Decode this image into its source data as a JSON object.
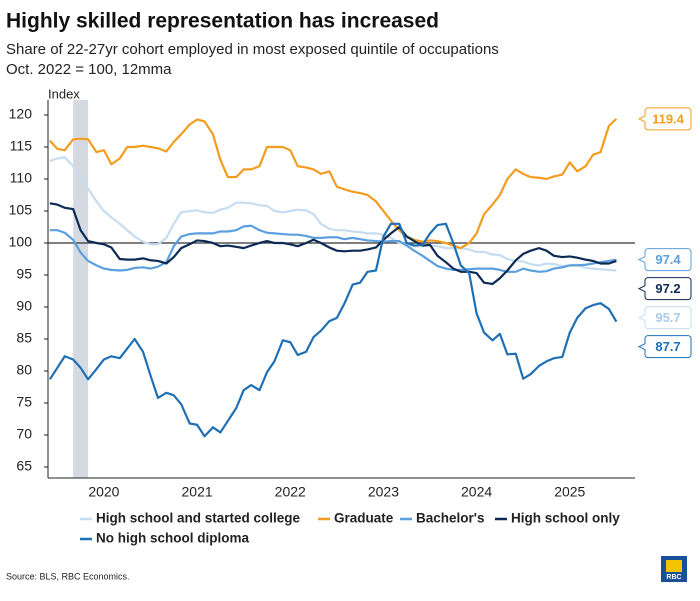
{
  "chart_data": {
    "type": "line",
    "title": "Highly skilled representation has increased",
    "subtitle": "Share of 22-27yr cohort employed in most exposed quintile of occupations",
    "subtitle2": "Oct. 2022 = 100, 12mma",
    "ylabel": "Index",
    "source": "Source: BLS, RBC Economics.",
    "logo": "RBC",
    "xlim": [
      2019.9,
      2026.2
    ],
    "ylim": [
      65,
      120
    ],
    "yticks": [
      65,
      70,
      75,
      80,
      85,
      90,
      95,
      100,
      105,
      110,
      115,
      120
    ],
    "xticks": [
      {
        "value": 2020.5,
        "label": "2020"
      },
      {
        "value": 2021.5,
        "label": "2021"
      },
      {
        "value": 2022.5,
        "label": "2022"
      },
      {
        "value": 2023.5,
        "label": "2023"
      },
      {
        "value": 2024.5,
        "label": "2024"
      },
      {
        "value": 2025.5,
        "label": "2025"
      }
    ],
    "reference_line": 100,
    "recession": [
      2020.17,
      2020.33
    ],
    "x": [
      2019.92,
      2020.0,
      2020.08,
      2020.17,
      2020.25,
      2020.33,
      2020.42,
      2020.5,
      2020.58,
      2020.67,
      2020.75,
      2020.83,
      2020.92,
      2021.0,
      2021.08,
      2021.17,
      2021.25,
      2021.33,
      2021.42,
      2021.5,
      2021.58,
      2021.67,
      2021.75,
      2021.83,
      2021.92,
      2022.0,
      2022.08,
      2022.17,
      2022.25,
      2022.33,
      2022.42,
      2022.5,
      2022.58,
      2022.67,
      2022.75,
      2022.83,
      2022.92,
      2023.0,
      2023.08,
      2023.17,
      2023.25,
      2023.33,
      2023.42,
      2023.5,
      2023.58,
      2023.67,
      2023.75,
      2023.83,
      2023.92,
      2024.0,
      2024.08,
      2024.17,
      2024.25,
      2024.33,
      2024.42,
      2024.5,
      2024.58,
      2024.67,
      2024.75,
      2024.83,
      2024.92,
      2025.0,
      2025.08,
      2025.17,
      2025.25,
      2025.33,
      2025.42,
      2025.5,
      2025.58,
      2025.67,
      2025.75,
      2025.83,
      2025.92,
      2026.0
    ],
    "series": [
      {
        "name": "High school and started college",
        "color": "#c6ddf1",
        "values": [
          112.8,
          113.2,
          113.4,
          112,
          110,
          108.5,
          106.5,
          105,
          104,
          103,
          102,
          101,
          100.2,
          99.8,
          99.8,
          100.8,
          103,
          104.8,
          105,
          105.1,
          104.8,
          104.7,
          105.2,
          105.5,
          106.3,
          106.3,
          106.2,
          105.9,
          105.8,
          105,
          104.8,
          105,
          105.2,
          105.1,
          104.5,
          103,
          102.2,
          102,
          102,
          101.8,
          101.7,
          101.5,
          101.5,
          101.3,
          100.8,
          100,
          99.8,
          99.5,
          99.5,
          99.6,
          99.5,
          99.2,
          99.2,
          99.2,
          99,
          98.6,
          98.6,
          98.2,
          98.1,
          97.5,
          97.2,
          97.1,
          96.7,
          96.5,
          96.8,
          96.7,
          96.4,
          96.5,
          96.6,
          96.1,
          96,
          95.9,
          95.8,
          95.7
        ]
      },
      {
        "name": "Graduate",
        "color": "#f39c1f",
        "values": [
          116,
          114.7,
          114.5,
          116.2,
          116.3,
          116.2,
          114.2,
          114.5,
          112.3,
          113.2,
          115,
          115,
          115.2,
          115,
          114.8,
          114.3,
          115.8,
          117,
          118.5,
          119.3,
          119,
          117,
          113,
          110.3,
          110.3,
          111.5,
          111.5,
          112,
          115,
          115,
          115,
          114.5,
          112,
          111.8,
          111.5,
          110.8,
          111.2,
          108.8,
          108.4,
          108,
          107.8,
          107.5,
          106.5,
          105,
          103.5,
          102,
          101,
          100.5,
          100.2,
          100.4,
          100.3,
          100,
          99.6,
          99.2,
          100,
          101.5,
          104.5,
          106,
          107.5,
          110,
          111.5,
          110.8,
          110.3,
          110.2,
          110,
          110.4,
          110.7,
          112.6,
          111.2,
          112,
          113.8,
          114.2,
          118.3,
          119.4
        ]
      },
      {
        "name": "Bachelor's",
        "color": "#5b9fde",
        "values": [
          102,
          102,
          101.6,
          100.5,
          98.5,
          97.2,
          96.5,
          96,
          95.8,
          95.7,
          95.8,
          96.1,
          96.2,
          96,
          96.3,
          97,
          99.5,
          101,
          101.4,
          101.5,
          101.5,
          101.5,
          101.8,
          101.8,
          102,
          102.6,
          102.7,
          102,
          101.6,
          101.5,
          101.4,
          101.3,
          101.3,
          101.1,
          100.8,
          100.8,
          100.9,
          100.9,
          100.6,
          100.8,
          100.6,
          100.4,
          100.3,
          100.2,
          100.3,
          100.3,
          99.6,
          98.8,
          98,
          97.2,
          96.4,
          96,
          95.8,
          95.8,
          95.9,
          96,
          96,
          96,
          95.8,
          95.5,
          95.5,
          96,
          95.7,
          95.5,
          95.6,
          96,
          96.2,
          96.5,
          96.5,
          96.6,
          96.8,
          97,
          97.2,
          97.4
        ]
      },
      {
        "name": "High school only",
        "color": "#0d2a55",
        "values": [
          106.2,
          106,
          105.5,
          105.3,
          102,
          100.3,
          100,
          99.8,
          99.3,
          97.5,
          97.4,
          97.4,
          97.6,
          97.3,
          97.2,
          96.8,
          97.8,
          99.2,
          99.8,
          100.4,
          100.3,
          100,
          99.5,
          99.6,
          99.4,
          99.2,
          99.6,
          100,
          100.3,
          100,
          100,
          99.8,
          99.5,
          100,
          100.5,
          100,
          99.3,
          98.8,
          98.7,
          98.8,
          98.8,
          99,
          99.3,
          100.5,
          101.5,
          102.5,
          101,
          100.3,
          99.6,
          99.7,
          98,
          97,
          96,
          95.5,
          95.5,
          95.3,
          93.8,
          93.6,
          94.5,
          95.7,
          97.3,
          98.3,
          98.8,
          99.2,
          98.8,
          98,
          97.8,
          97.9,
          97.7,
          97.4,
          97.2,
          96.8,
          96.8,
          97.2
        ]
      },
      {
        "name": "No high school diploma",
        "color": "#1f6fb5",
        "values": [
          78.7,
          80.5,
          82.3,
          81.8,
          80.5,
          78.7,
          80.3,
          81.8,
          82.3,
          82,
          83.5,
          85,
          83,
          79.3,
          75.8,
          76.6,
          76.2,
          74.8,
          71.8,
          71.6,
          69.8,
          71.2,
          70.4,
          72.2,
          74.2,
          77,
          77.8,
          77,
          79.8,
          81.5,
          84.8,
          84.5,
          82.5,
          83,
          85.3,
          86.3,
          87.8,
          88.3,
          90.5,
          93.5,
          93.8,
          95.5,
          95.7,
          101,
          103,
          103,
          100,
          99.6,
          99.7,
          101.5,
          102.8,
          103,
          100,
          96.5,
          95.3,
          89,
          86,
          84.8,
          85.8,
          82.6,
          82.7,
          78.8,
          79.5,
          80.8,
          81.5,
          82,
          82.2,
          86,
          88.3,
          89.8,
          90.3,
          90.6,
          89.7,
          87.7
        ]
      }
    ]
  }
}
